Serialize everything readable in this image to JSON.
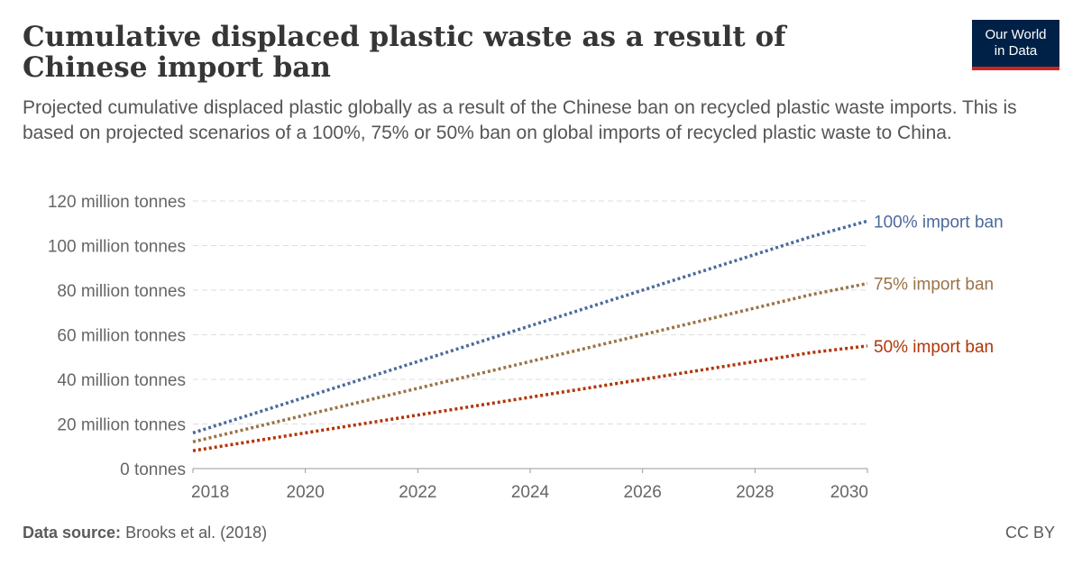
{
  "header": {
    "title": "Cumulative displaced plastic waste as a result of Chinese import ban",
    "subtitle": "Projected cumulative displaced plastic globally as a result of the Chinese ban on recycled plastic waste imports. This is based on projected scenarios of a 100%, 75% or 50% ban on global imports of recycled plastic waste to China."
  },
  "logo": {
    "line1": "Our World",
    "line2": "in Data"
  },
  "footer": {
    "source_label": "Data source:",
    "source_text": "Brooks et al. (2018)",
    "license": "CC BY"
  },
  "chart_data": {
    "type": "line",
    "x": [
      2018,
      2019,
      2020,
      2021,
      2022,
      2023,
      2024,
      2025,
      2026,
      2027,
      2028,
      2029,
      2030
    ],
    "series": [
      {
        "name": "100% import ban",
        "color": "#4c6a9c",
        "values": [
          16,
          24,
          32,
          40,
          48,
          56,
          64,
          72,
          80,
          88,
          96,
          104,
          111
        ]
      },
      {
        "name": "75% import ban",
        "color": "#9a7348",
        "values": [
          12,
          18,
          24,
          30,
          36,
          42,
          48,
          54,
          60,
          66,
          72,
          78,
          83
        ]
      },
      {
        "name": "50% import ban",
        "color": "#b13507",
        "values": [
          8,
          12,
          16,
          20,
          24,
          28,
          32,
          36,
          40,
          44,
          48,
          52,
          55
        ]
      }
    ],
    "xticks": [
      "2018",
      "2020",
      "2022",
      "2024",
      "2026",
      "2028",
      "2030"
    ],
    "yticks": [
      "0 tonnes",
      "20 million tonnes",
      "40 million tonnes",
      "60 million tonnes",
      "80 million tonnes",
      "100 million tonnes",
      "120 million tonnes"
    ],
    "ylim": [
      0,
      120
    ],
    "xlim": [
      2018,
      2030
    ],
    "grid": true,
    "line_style": "dotted"
  }
}
